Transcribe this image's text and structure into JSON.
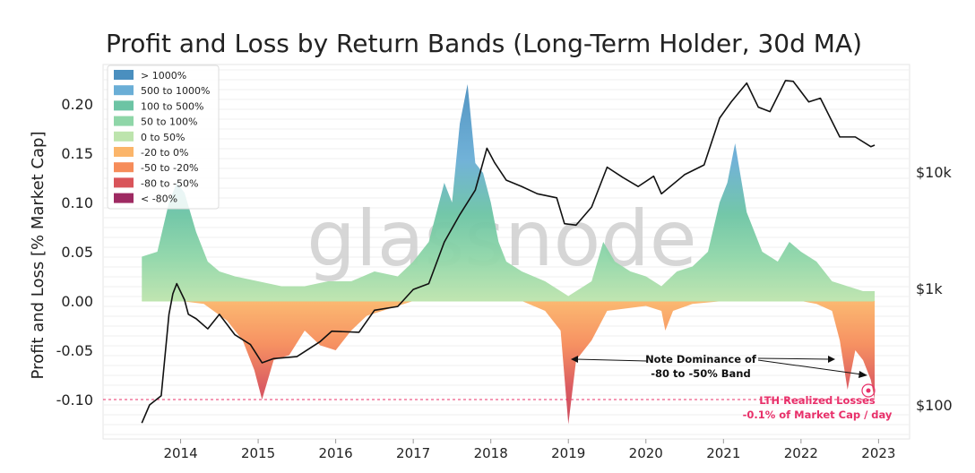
{
  "chart_data": {
    "type": "area",
    "title": "Profit and Loss by Return Bands (Long-Term Holder, 30d MA)",
    "ylabel": "Profit and Loss [% Market Cap]",
    "xlabel": "",
    "ylim": [
      -0.14,
      0.24
    ],
    "xlim": [
      2013.0,
      2023.4
    ],
    "yticks": [
      "0.20",
      "0.15",
      "0.10",
      "0.05",
      "0.00",
      "-0.05",
      "-0.10"
    ],
    "ytick_values": [
      0.2,
      0.15,
      0.1,
      0.05,
      0.0,
      -0.05,
      -0.1
    ],
    "xticks": [
      "2014",
      "2015",
      "2016",
      "2017",
      "2018",
      "2019",
      "2020",
      "2021",
      "2022",
      "2023"
    ],
    "xtick_values": [
      2014,
      2015,
      2016,
      2017,
      2018,
      2019,
      2020,
      2021,
      2022,
      2023
    ],
    "price_axis_ticks": [
      "$10k",
      "$1k",
      "$100"
    ],
    "price_axis_values": [
      10000,
      1000,
      100
    ],
    "price_axis_scale": "log",
    "watermark": "glassnode",
    "grid": true,
    "legend_position": "top-left",
    "legend": [
      {
        "label": "> 1000%",
        "color": "#4a8fbf"
      },
      {
        "label": "500 to 1000%",
        "color": "#6aaed6"
      },
      {
        "label": "100 to 500%",
        "color": "#6cc4a4"
      },
      {
        "label": "50 to 100%",
        "color": "#8fd6a8"
      },
      {
        "label": "0 to 50%",
        "color": "#bde4ad"
      },
      {
        "label": "-20 to 0%",
        "color": "#fbb56a"
      },
      {
        "label": "-50 to -20%",
        "color": "#f68c5a"
      },
      {
        "label": "-80 to -50%",
        "color": "#d9545a"
      },
      {
        "label": "< -80%",
        "color": "#9e2a62"
      }
    ],
    "profit_series": {
      "name": "Realized Profit (stacked bands)",
      "x": [
        2013.5,
        2013.7,
        2013.85,
        2013.95,
        2014.05,
        2014.2,
        2014.35,
        2014.5,
        2014.7,
        2015.0,
        2015.3,
        2015.6,
        2015.9,
        2016.2,
        2016.5,
        2016.8,
        2017.0,
        2017.2,
        2017.4,
        2017.5,
        2017.6,
        2017.7,
        2017.8,
        2017.9,
        2018.0,
        2018.1,
        2018.2,
        2018.4,
        2018.7,
        2019.0,
        2019.3,
        2019.45,
        2019.6,
        2019.8,
        2020.0,
        2020.2,
        2020.4,
        2020.6,
        2020.8,
        2020.95,
        2021.05,
        2021.15,
        2021.3,
        2021.5,
        2021.7,
        2021.85,
        2022.0,
        2022.2,
        2022.4,
        2022.6,
        2022.8,
        2022.95
      ],
      "values": [
        0.045,
        0.05,
        0.1,
        0.12,
        0.11,
        0.07,
        0.04,
        0.03,
        0.025,
        0.02,
        0.015,
        0.015,
        0.02,
        0.02,
        0.03,
        0.025,
        0.04,
        0.06,
        0.12,
        0.1,
        0.18,
        0.22,
        0.14,
        0.13,
        0.1,
        0.06,
        0.04,
        0.03,
        0.02,
        0.005,
        0.02,
        0.06,
        0.04,
        0.03,
        0.025,
        0.015,
        0.03,
        0.035,
        0.05,
        0.1,
        0.12,
        0.16,
        0.09,
        0.05,
        0.04,
        0.06,
        0.05,
        0.04,
        0.02,
        0.015,
        0.01,
        0.01
      ]
    },
    "loss_series": {
      "name": "Realized Loss (stacked bands)",
      "x": [
        2013.5,
        2014.0,
        2014.3,
        2014.6,
        2014.8,
        2014.95,
        2015.05,
        2015.2,
        2015.4,
        2015.6,
        2015.8,
        2016.0,
        2016.2,
        2016.4,
        2016.6,
        2016.8,
        2017.0,
        2018.0,
        2018.4,
        2018.7,
        2018.9,
        2019.0,
        2019.1,
        2019.3,
        2019.5,
        2020.0,
        2020.2,
        2020.25,
        2020.35,
        2020.6,
        2021.0,
        2021.5,
        2022.0,
        2022.2,
        2022.4,
        2022.5,
        2022.6,
        2022.7,
        2022.8,
        2022.9,
        2022.95
      ],
      "values": [
        0.0,
        0.0,
        -0.003,
        -0.02,
        -0.04,
        -0.07,
        -0.1,
        -0.06,
        -0.055,
        -0.03,
        -0.045,
        -0.05,
        -0.03,
        -0.015,
        -0.01,
        -0.005,
        0.0,
        0.0,
        0.0,
        -0.01,
        -0.03,
        -0.125,
        -0.06,
        -0.04,
        -0.01,
        -0.005,
        -0.01,
        -0.03,
        -0.01,
        -0.003,
        0.0,
        0.0,
        0.0,
        -0.003,
        -0.01,
        -0.04,
        -0.09,
        -0.05,
        -0.06,
        -0.08,
        -0.1
      ]
    },
    "price_series": {
      "name": "BTC Price",
      "x": [
        2013.5,
        2013.6,
        2013.75,
        2013.85,
        2013.9,
        2013.95,
        2014.05,
        2014.1,
        2014.2,
        2014.35,
        2014.5,
        2014.7,
        2014.9,
        2015.05,
        2015.2,
        2015.5,
        2015.8,
        2015.95,
        2016.3,
        2016.5,
        2016.8,
        2017.0,
        2017.2,
        2017.4,
        2017.6,
        2017.8,
        2017.95,
        2018.05,
        2018.2,
        2018.4,
        2018.6,
        2018.85,
        2018.95,
        2019.1,
        2019.3,
        2019.5,
        2019.7,
        2019.9,
        2020.1,
        2020.2,
        2020.5,
        2020.75,
        2020.95,
        2021.1,
        2021.3,
        2021.45,
        2021.6,
        2021.8,
        2021.9,
        2022.1,
        2022.25,
        2022.5,
        2022.7,
        2022.9,
        2022.95
      ],
      "values": [
        70,
        100,
        120,
        600,
        900,
        1100,
        800,
        600,
        550,
        450,
        600,
        400,
        330,
        230,
        250,
        260,
        350,
        430,
        420,
        650,
        700,
        980,
        1100,
        2500,
        4300,
        7000,
        16000,
        12000,
        8500,
        7500,
        6500,
        6000,
        3600,
        3500,
        5000,
        11000,
        9000,
        7500,
        9200,
        6500,
        9500,
        11500,
        29000,
        40000,
        58000,
        36000,
        33000,
        61000,
        60000,
        40000,
        43000,
        20000,
        20000,
        16500,
        17000
      ]
    },
    "reference_line": {
      "y": -0.1,
      "color": "#e8306a",
      "style": "dashed"
    },
    "annotations": [
      {
        "text": "Note Dominance of",
        "subtext": "-80 to -50% Band",
        "color": "#111111"
      },
      {
        "text": "LTH Realized Losses",
        "subtext": "-0.1% of Market Cap / day",
        "color": "#e8306a"
      }
    ]
  }
}
